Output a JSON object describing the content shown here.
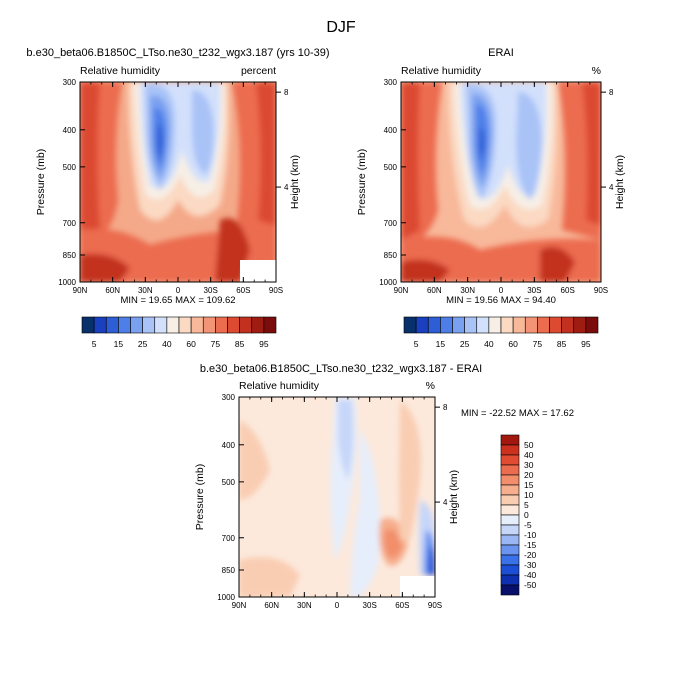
{
  "page_title": "DJF",
  "colors": {
    "model_obs_scale": [
      "#08306b",
      "#1a3fbf",
      "#2e5ed6",
      "#4e7fe8",
      "#7aa0f0",
      "#a9c3f7",
      "#d2e0fb",
      "#f7efe6",
      "#fbd9c3",
      "#f8b89a",
      "#f49477",
      "#ec6c4f",
      "#dc4a31",
      "#c2301f",
      "#9e1c12",
      "#7a0d0b"
    ],
    "diff_scale": [
      "#08106b",
      "#0d2fb0",
      "#1c4fd6",
      "#3a70e8",
      "#6a94f0",
      "#9ab6f5",
      "#c6d6f9",
      "#e6eefc",
      "#fce9dc",
      "#f9cdb2",
      "#f6ae8d",
      "#f28e6b",
      "#ec6c4f",
      "#e14b32",
      "#cc3120",
      "#a3180e"
    ]
  },
  "chart_data": [
    {
      "type": "heatmap",
      "id": "model",
      "title": "b.e30_beta06.B1850C_LTso.ne30_t232_wgx3.187 (yrs 10-39)",
      "left_label": "Relative humidity",
      "right_label": "percent",
      "ylabel": "Pressure (mb)",
      "ylabel_right": "Height (km)",
      "x_ticks": [
        "90N",
        "60N",
        "30N",
        "0",
        "30S",
        "60S",
        "90S"
      ],
      "y_ticks": [
        "300",
        "400",
        "500",
        "700",
        "850",
        "1000"
      ],
      "y_ticks_right": [
        "8",
        "4"
      ],
      "stats": "MIN = 19.65   MAX = 109.62",
      "grid": false
    },
    {
      "type": "heatmap",
      "id": "obs",
      "title": "ERAI",
      "left_label": "Relative humidity",
      "right_label": "%",
      "ylabel": "Pressure (mb)",
      "ylabel_right": "Height (km)",
      "x_ticks": [
        "90N",
        "60N",
        "30N",
        "0",
        "30S",
        "60S",
        "90S"
      ],
      "y_ticks": [
        "300",
        "400",
        "500",
        "700",
        "850",
        "1000"
      ],
      "y_ticks_right": [
        "8",
        "4"
      ],
      "stats": "MIN = 19.56   MAX = 94.40",
      "grid": false
    },
    {
      "type": "heatmap",
      "id": "diff",
      "title": "b.e30_beta06.B1850C_LTso.ne30_t232_wgx3.187 - ERAI",
      "left_label": "Relative humidity",
      "right_label": "%",
      "ylabel": "Pressure (mb)",
      "ylabel_right": "Height (km)",
      "x_ticks": [
        "90N",
        "60N",
        "30N",
        "0",
        "30S",
        "60S",
        "90S"
      ],
      "y_ticks": [
        "300",
        "400",
        "500",
        "700",
        "850",
        "1000"
      ],
      "y_ticks_right": [
        "8",
        "4"
      ],
      "stats": "MIN = -22.52   MAX =  17.62",
      "grid": false
    }
  ],
  "colorbar_top": {
    "labels": [
      "5",
      "15",
      "25",
      "40",
      "60",
      "75",
      "85",
      "95"
    ],
    "orientation": "horizontal"
  },
  "colorbar_diff": {
    "labels": [
      "50",
      "40",
      "30",
      "20",
      "15",
      "10",
      "5",
      "0",
      "-5",
      "-10",
      "-15",
      "-20",
      "-30",
      "-40",
      "-50"
    ],
    "orientation": "vertical"
  }
}
